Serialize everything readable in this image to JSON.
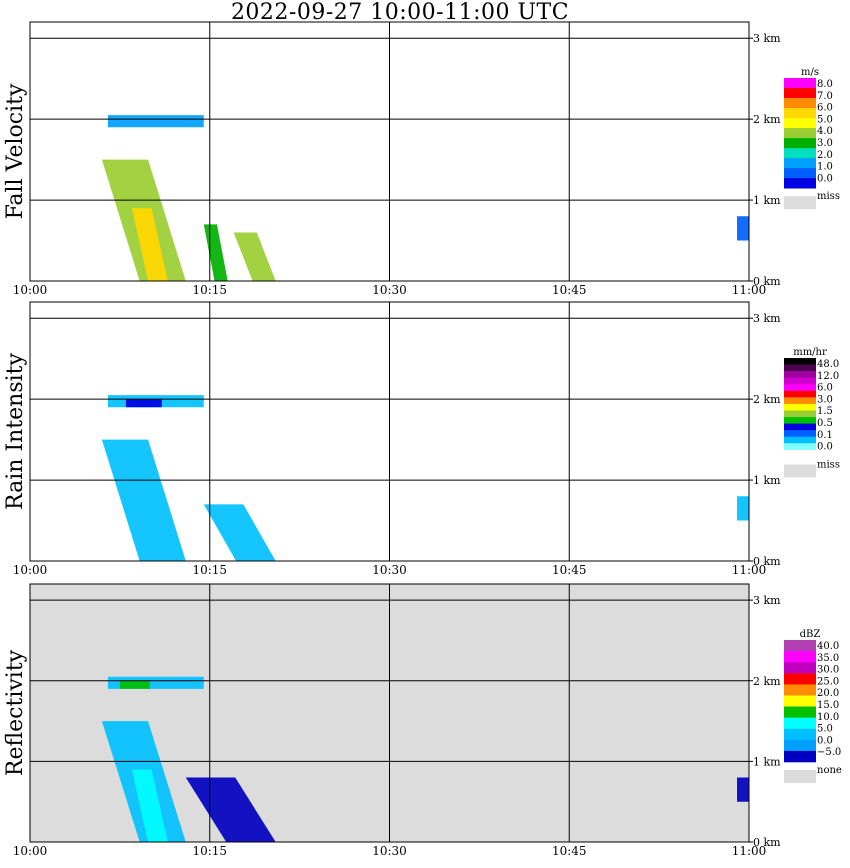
{
  "title": "2022-09-27  10:00-11:00 UTC",
  "chart_data": [
    {
      "type": "heatmap",
      "ylabel": "Fall Velocity",
      "x_ticks": [
        "10:00",
        "10:15",
        "10:30",
        "10:45",
        "11:00"
      ],
      "y_ticks": [
        "0 km",
        "1 km",
        "2 km",
        "3 km"
      ],
      "xlim_minutes": [
        0,
        60
      ],
      "ylim_km": [
        0,
        3.2
      ],
      "grid": true,
      "background": "#ffffff",
      "legend": {
        "unit": "m/s",
        "placement": "right",
        "labels": [
          "8.0",
          "7.0",
          "6.0",
          "5.0",
          "4.0",
          "3.0",
          "2.0",
          "1.0",
          "0.0"
        ],
        "colors": [
          "#ff00ff",
          "#ff0000",
          "#ff8c00",
          "#ffd700",
          "#ffff00",
          "#9acd32",
          "#00b000",
          "#00e0c0",
          "#00a0ff",
          "#0060ff",
          "#0000e0"
        ],
        "miss_label": "miss",
        "miss_color": "#dcdcdc"
      },
      "echoes": [
        {
          "t": [
            6.5,
            14.5
          ],
          "h": [
            1.9,
            2.05
          ],
          "value": 2.0
        },
        {
          "t": [
            6,
            13
          ],
          "h": [
            0.0,
            1.5
          ],
          "value": 4.0
        },
        {
          "t": [
            8.5,
            11.5
          ],
          "h": [
            0.0,
            0.9
          ],
          "value": 6.0
        },
        {
          "t": [
            17,
            20.5
          ],
          "h": [
            0.0,
            0.6
          ],
          "value": 4.5
        },
        {
          "t": [
            14.5,
            16.5
          ],
          "h": [
            0.0,
            0.7
          ],
          "value": 3.5
        },
        {
          "t": [
            59,
            60
          ],
          "h": [
            0.5,
            0.8
          ],
          "value": 1.5
        }
      ]
    },
    {
      "type": "heatmap",
      "ylabel": "Rain Intensity",
      "x_ticks": [
        "10:00",
        "10:15",
        "10:30",
        "10:45",
        "11:00"
      ],
      "y_ticks": [
        "0 km",
        "1 km",
        "2 km",
        "3 km"
      ],
      "xlim_minutes": [
        0,
        60
      ],
      "ylim_km": [
        0,
        3.2
      ],
      "grid": true,
      "background": "#ffffff",
      "legend": {
        "unit": "mm/hr",
        "placement": "right",
        "labels": [
          "48.0",
          "12.0",
          "6.0",
          "3.0",
          "1.5",
          "0.5",
          "0.1",
          "0.0"
        ],
        "colors": [
          "#000000",
          "#500050",
          "#a000a0",
          "#d000d0",
          "#ff00ff",
          "#ff0000",
          "#ff8c00",
          "#ffff00",
          "#9acd32",
          "#00c000",
          "#0000e0",
          "#0060ff",
          "#00c0ff",
          "#80ffff",
          "#ffffff"
        ],
        "miss_label": "miss",
        "miss_color": "#dcdcdc"
      },
      "echoes": [
        {
          "t": [
            6.5,
            14.5
          ],
          "h": [
            1.9,
            2.05
          ],
          "value": 0.3
        },
        {
          "t": [
            8,
            11
          ],
          "h": [
            1.9,
            2.0
          ],
          "value": 0.5
        },
        {
          "t": [
            6,
            13
          ],
          "h": [
            0.0,
            1.5
          ],
          "value": 0.1
        },
        {
          "t": [
            14.5,
            20.5
          ],
          "h": [
            0.0,
            0.7
          ],
          "value": 0.1
        },
        {
          "t": [
            59,
            60
          ],
          "h": [
            0.5,
            0.8
          ],
          "value": 0.1
        }
      ]
    },
    {
      "type": "heatmap",
      "ylabel": "Reflectivity",
      "x_ticks": [
        "10:00",
        "10:15",
        "10:30",
        "10:45",
        "11:00"
      ],
      "y_ticks": [
        "0 km",
        "1 km",
        "2 km",
        "3 km"
      ],
      "xlim_minutes": [
        0,
        60
      ],
      "ylim_km": [
        0,
        3.2
      ],
      "grid": true,
      "background": "#dcdcdc",
      "legend": {
        "unit": "dBZ",
        "placement": "right",
        "labels": [
          "40.0",
          "35.0",
          "30.0",
          "25.0",
          "20.0",
          "15.0",
          "10.0",
          "5.0",
          "0.0",
          "−5.0"
        ],
        "colors": [
          "#b040b0",
          "#ff00ff",
          "#c000c0",
          "#ff0000",
          "#ff8c00",
          "#ffff00",
          "#00c000",
          "#00ffff",
          "#00c0ff",
          "#00a0ff",
          "#0000c0"
        ],
        "miss_label": "none",
        "miss_color": "#dcdcdc"
      },
      "echoes": [
        {
          "t": [
            6.5,
            14.5
          ],
          "h": [
            1.9,
            2.05
          ],
          "value": 7.0
        },
        {
          "t": [
            7.5,
            10
          ],
          "h": [
            1.9,
            2.0
          ],
          "value": 15.0
        },
        {
          "t": [
            6,
            13
          ],
          "h": [
            0.0,
            1.5
          ],
          "value": 5.0
        },
        {
          "t": [
            8.5,
            11.5
          ],
          "h": [
            0.0,
            0.9
          ],
          "value": 10.0
        },
        {
          "t": [
            13,
            20.5
          ],
          "h": [
            0.0,
            0.8
          ],
          "value": -2.0
        },
        {
          "t": [
            59,
            60
          ],
          "h": [
            0.5,
            0.8
          ],
          "value": -2.0
        }
      ]
    }
  ]
}
